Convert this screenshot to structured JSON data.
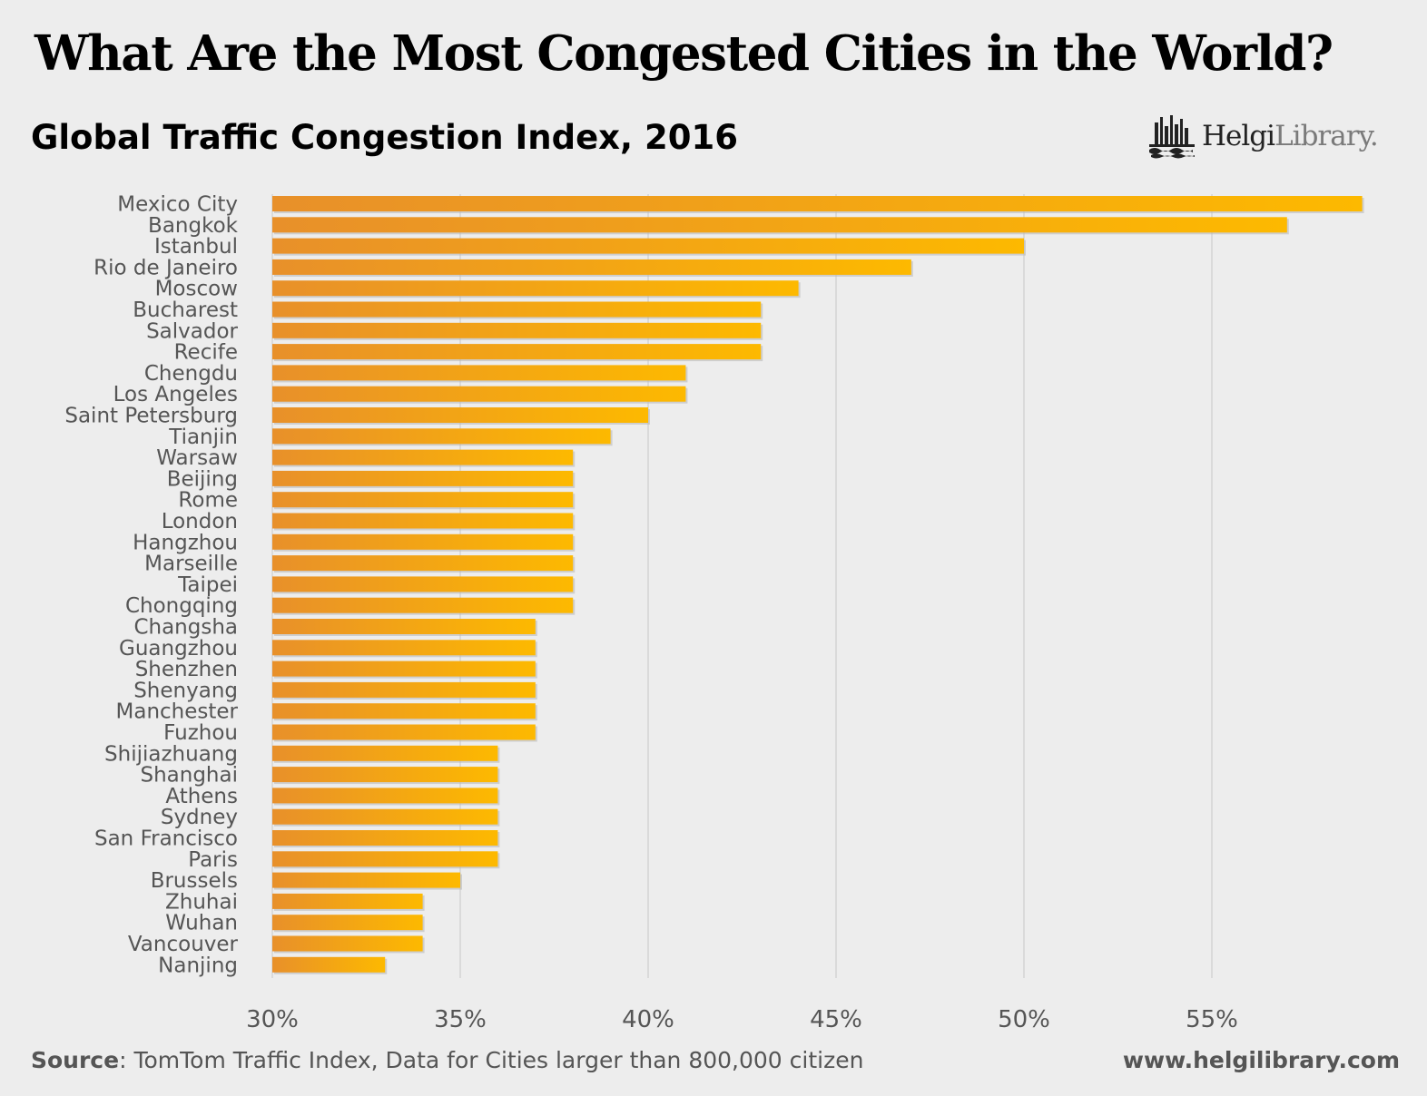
{
  "header": {
    "title": "What Are the Most Congested Cities in the World?",
    "subtitle": "Global Traffic Congestion Index, 2016"
  },
  "brand": {
    "name_part1": "Helgi",
    "name_part2": "Library."
  },
  "footer": {
    "source_label": "Source",
    "source_text": ": TomTom Traffic Index, Data for Cities larger than 800,000 citizen",
    "url": "www.helgilibrary.com"
  },
  "colors": {
    "bar_start": "#e8902a",
    "bar_end": "#fdb900",
    "gridline": "#d4d4d4",
    "axis_text": "#555555",
    "label_text": "#555555"
  },
  "chart_data": {
    "type": "bar",
    "orientation": "horizontal",
    "title": "Global Traffic Congestion Index, 2016",
    "xlabel": "",
    "ylabel": "",
    "xlim": [
      30,
      60
    ],
    "xticks": [
      30,
      35,
      40,
      45,
      50,
      55
    ],
    "xtick_labels": [
      "30%",
      "35%",
      "40%",
      "45%",
      "50%",
      "55%"
    ],
    "grid": true,
    "unit": "%",
    "categories": [
      "Mexico City",
      "Bangkok",
      "Istanbul",
      "Rio de Janeiro",
      "Moscow",
      "Bucharest",
      "Salvador",
      "Recife",
      "Chengdu",
      "Los Angeles",
      "Saint Petersburg",
      "Tianjin",
      "Warsaw",
      "Beijing",
      "Rome",
      "London",
      "Hangzhou",
      "Marseille",
      "Taipei",
      "Chongqing",
      "Changsha",
      "Guangzhou",
      "Shenzhen",
      "Shenyang",
      "Manchester",
      "Fuzhou",
      "Shijiazhuang",
      "Shanghai",
      "Athens",
      "Sydney",
      "San Francisco",
      "Paris",
      "Brussels",
      "Zhuhai",
      "Wuhan",
      "Vancouver",
      "Nanjing"
    ],
    "values": [
      59,
      57,
      50,
      47,
      44,
      43,
      43,
      43,
      41,
      41,
      40,
      39,
      38,
      38,
      38,
      38,
      38,
      38,
      38,
      38,
      37,
      37,
      37,
      37,
      37,
      37,
      36,
      36,
      36,
      36,
      36,
      36,
      35,
      34,
      34,
      34,
      33
    ]
  }
}
